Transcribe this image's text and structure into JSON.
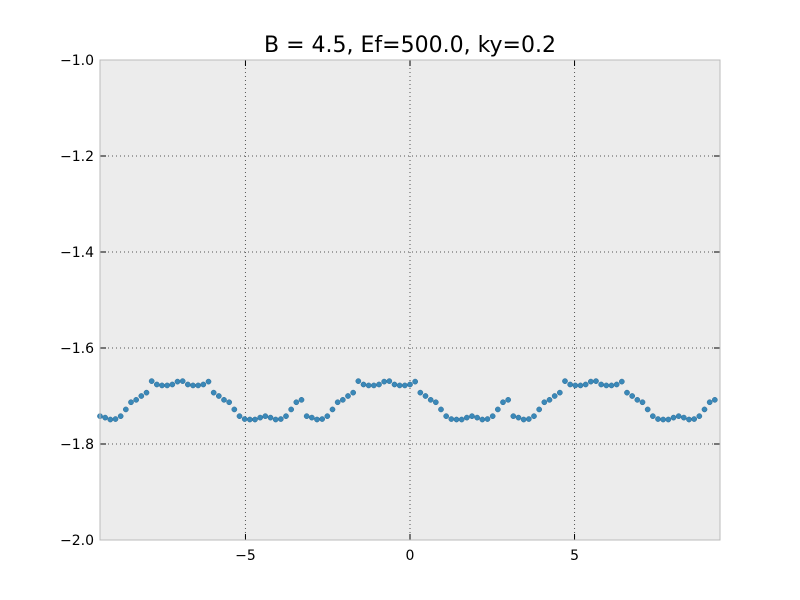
{
  "chart_data": {
    "type": "scatter",
    "title": "B = 4.5, Ef=500.0, ky=0.2",
    "xlabel": "",
    "ylabel": "",
    "xlim": [
      -9.42,
      9.42
    ],
    "ylim": [
      -2.0,
      -1.0
    ],
    "xticks": [
      -5,
      0,
      5
    ],
    "xtick_labels": [
      "−5",
      "0",
      "5"
    ],
    "yticks": [
      -2.0,
      -1.8,
      -1.6,
      -1.4,
      -1.2,
      -1.0
    ],
    "ytick_labels": [
      "−2.0",
      "−1.8",
      "−1.6",
      "−1.4",
      "−1.2",
      "−1.0"
    ],
    "grid": true,
    "colors": {
      "plot_bg": "#ececec",
      "marker": "#3a88b8",
      "marker_edge": "#2f6f99",
      "grid": "#555555",
      "spine": "#bbbbbb"
    },
    "period": 6.28,
    "period_x_start": -9.42,
    "period_points_x": [
      0.0,
      0.157,
      0.314,
      0.471,
      0.628,
      0.785,
      0.942,
      1.099,
      1.256,
      1.413,
      1.57,
      1.727,
      1.884,
      2.041,
      2.198,
      2.355,
      2.512,
      2.669,
      2.826,
      2.983,
      3.14,
      3.297,
      3.454,
      3.611,
      3.768,
      3.925,
      4.082,
      4.239,
      4.396,
      4.553,
      4.71,
      4.867,
      5.024,
      5.181,
      5.338,
      5.495,
      5.652,
      5.809,
      5.966,
      6.123
    ],
    "period_points_y": [
      -1.742,
      -1.745,
      -1.749,
      -1.748,
      -1.742,
      -1.728,
      -1.713,
      -1.708,
      -1.7,
      -1.693,
      -1.669,
      -1.676,
      -1.678,
      -1.678,
      -1.676,
      -1.67,
      -1.669,
      -1.676,
      -1.678,
      -1.678,
      -1.676,
      -1.67,
      -1.693,
      -1.7,
      -1.708,
      -1.713,
      -1.728,
      -1.742,
      -1.748,
      -1.749,
      -1.749,
      -1.745,
      -1.742,
      -1.745,
      -1.749,
      -1.748,
      -1.742,
      -1.728,
      -1.713,
      -1.708
    ],
    "n_periods": 3
  }
}
